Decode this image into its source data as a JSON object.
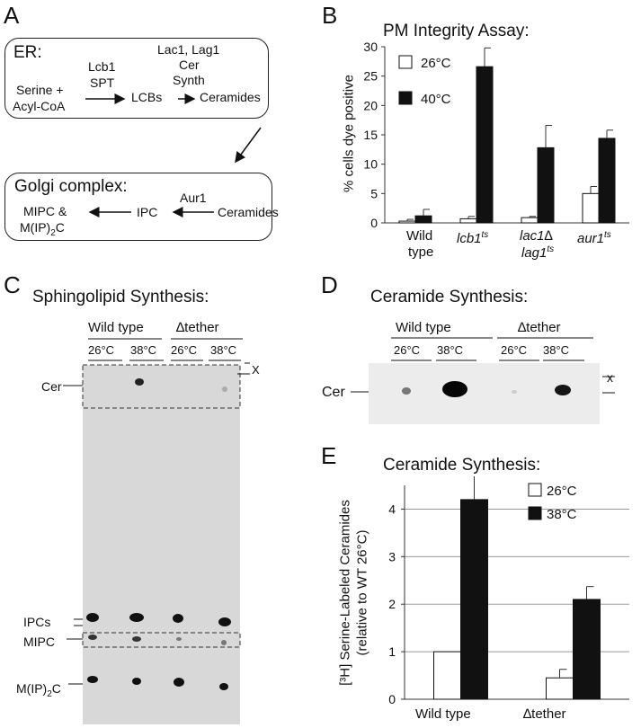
{
  "panelA": {
    "letter": "A",
    "er_title": "ER:",
    "lcb1": "Lcb1",
    "spt": "SPT",
    "lac1": "Lac1, Lag1",
    "cer": "Cer",
    "synth": "Synth",
    "serine": "Serine +",
    "acylcoa": "Acyl-CoA",
    "lcbs": "LCBs",
    "ceramides": "Ceramides",
    "golgi_title": "Golgi complex:",
    "aur1": "Aur1",
    "mipc": "MIPC &",
    "mip2c_main": "M(IP)",
    "mip2c_sub": "2",
    "mip2c_end": "C",
    "ipc": "IPC",
    "ceramides2": "Ceramides"
  },
  "panelB": {
    "letter": "B",
    "title": "PM Integrity Assay:",
    "ylabel": "% cells dye positive",
    "legend": [
      "26°C",
      "40°C"
    ],
    "yticks": [
      "0",
      "5",
      "10",
      "15",
      "20",
      "25",
      "30"
    ],
    "xlabels": {
      "wt1": "Wild",
      "wt2": "type",
      "lcb1": "lcb1",
      "lcb1_sup": "ts",
      "lac1_1": "lac1∆",
      "lac1_2": "lag1",
      "lac1_sup": "ts",
      "aur1": "aur1",
      "aur1_sup": "ts"
    }
  },
  "panelC": {
    "letter": "C",
    "title": "Sphingolipid Synthesis:",
    "group1": "Wild type",
    "group2": "∆tether",
    "temps": [
      "26°C",
      "38°C",
      "26°C",
      "38°C"
    ],
    "x_mark": "X",
    "labels": {
      "cer": "Cer",
      "ipcs": "IPCs",
      "mipc": "MIPC",
      "mip2c_main": "M(IP)",
      "mip2c_sub": "2",
      "mip2c_end": "C"
    }
  },
  "panelD": {
    "letter": "D",
    "title": "Ceramide Synthesis:",
    "group1": "Wild type",
    "group2": "∆tether",
    "temps": [
      "26°C",
      "38°C",
      "26°C",
      "38°C"
    ],
    "x_mark": "x",
    "cer": "Cer"
  },
  "panelE": {
    "letter": "E",
    "title": "Ceramide Synthesis:",
    "ylabel1": "[³H] Serine-Labeled Ceramides",
    "ylabel2": "(relative to WT 26°C)",
    "legend": [
      "26°C",
      "38°C"
    ],
    "yticks": [
      "0",
      "1",
      "2",
      "3",
      "4"
    ],
    "xlabels": [
      "Wild type",
      "∆tether"
    ]
  },
  "chart_data": [
    {
      "type": "bar",
      "title": "PM Integrity Assay:",
      "ylabel": "% cells dye positive",
      "categories": [
        "Wild type",
        "lcb1ts",
        "lac1∆ lag1ts",
        "aur1ts"
      ],
      "series": [
        {
          "name": "26°C",
          "values": [
            0.3,
            0.7,
            0.9,
            5.0
          ],
          "errors": [
            0.3,
            0.4,
            0.2,
            1.2
          ],
          "color": "#ffffff"
        },
        {
          "name": "40°C",
          "values": [
            1.2,
            26.6,
            12.8,
            14.4
          ],
          "errors": [
            1.1,
            3.2,
            3.8,
            1.4
          ],
          "color": "#111111"
        }
      ],
      "ylim": [
        0,
        30
      ],
      "grid": false,
      "legend": "top-left"
    },
    {
      "type": "bar",
      "title": "Ceramide Synthesis:",
      "ylabel": "[³H] Serine-Labeled Ceramides (relative to WT 26°C)",
      "categories": [
        "Wild type",
        "∆tether"
      ],
      "series": [
        {
          "name": "26°C",
          "values": [
            1.0,
            0.45
          ],
          "errors": [
            0.0,
            0.18
          ],
          "color": "#ffffff"
        },
        {
          "name": "38°C",
          "values": [
            4.2,
            2.1
          ],
          "errors": [
            0.5,
            0.27
          ],
          "color": "#111111"
        }
      ],
      "ylim": [
        0,
        4.5
      ],
      "grid": true,
      "legend": "top-right"
    }
  ]
}
